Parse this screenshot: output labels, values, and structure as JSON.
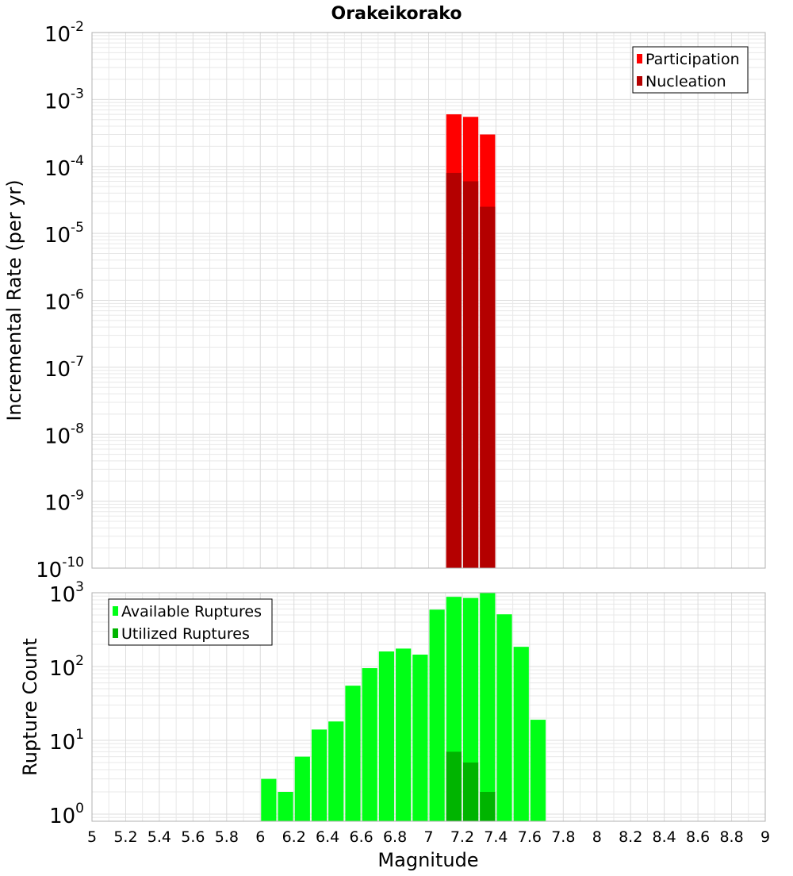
{
  "title": "Orakeikorako",
  "colors": {
    "participation": "#ff0000",
    "nucleation": "#b40000",
    "available": "#00ff16",
    "utilized": "#00b400"
  },
  "chart_data": [
    {
      "type": "bar",
      "title": "Orakeikorako",
      "xlabel": "",
      "ylabel": "Incremental Rate (per yr)",
      "y_scale": "log",
      "ylim": [
        1e-10,
        0.01
      ],
      "xlim": [
        5,
        9
      ],
      "grid": true,
      "legend_position": "top-right",
      "y_ticks": [
        {
          "base": "10",
          "exp": "-10"
        },
        {
          "base": "10",
          "exp": "-9"
        },
        {
          "base": "10",
          "exp": "-8"
        },
        {
          "base": "10",
          "exp": "-7"
        },
        {
          "base": "10",
          "exp": "-6"
        },
        {
          "base": "10",
          "exp": "-5"
        },
        {
          "base": "10",
          "exp": "-4"
        },
        {
          "base": "10",
          "exp": "-3"
        },
        {
          "base": "10",
          "exp": "-2"
        }
      ],
      "x": [
        7.15,
        7.25,
        7.35
      ],
      "series": [
        {
          "name": "Participation",
          "color": "#ff0000",
          "values": [
            0.0006,
            0.00055,
            0.0003
          ]
        },
        {
          "name": "Nucleation",
          "color": "#b40000",
          "values": [
            8e-05,
            6e-05,
            2.5e-05
          ]
        }
      ]
    },
    {
      "type": "bar",
      "xlabel": "Magnitude",
      "ylabel": "Rupture Count",
      "y_scale": "log",
      "ylim": [
        0.8,
        1000
      ],
      "xlim": [
        5,
        9
      ],
      "grid": true,
      "legend_position": "top-left",
      "x_ticks": [
        "5",
        "5.2",
        "5.4",
        "5.6",
        "5.8",
        "6",
        "6.2",
        "6.4",
        "6.6",
        "6.8",
        "7",
        "7.2",
        "7.4",
        "7.6",
        "7.8",
        "8",
        "8.2",
        "8.4",
        "8.6",
        "8.8",
        "9"
      ],
      "y_ticks": [
        {
          "base": "10",
          "exp": "0"
        },
        {
          "base": "10",
          "exp": "1"
        },
        {
          "base": "10",
          "exp": "2"
        },
        {
          "base": "10",
          "exp": "3"
        }
      ],
      "x": [
        6.05,
        6.15,
        6.25,
        6.35,
        6.45,
        6.55,
        6.65,
        6.75,
        6.85,
        6.95,
        7.05,
        7.15,
        7.25,
        7.35,
        7.45,
        7.55,
        7.65
      ],
      "series": [
        {
          "name": "Available Ruptures",
          "color": "#00ff16",
          "values": [
            3,
            2,
            6,
            14,
            18,
            55,
            95,
            160,
            175,
            145,
            590,
            880,
            850,
            1000,
            510,
            185,
            19
          ]
        },
        {
          "name": "Utilized Ruptures",
          "color": "#00b400",
          "values": [
            0,
            0,
            0,
            0,
            0,
            0,
            0,
            0,
            0,
            0,
            0,
            7,
            5,
            2,
            0,
            0,
            0
          ]
        }
      ]
    }
  ]
}
